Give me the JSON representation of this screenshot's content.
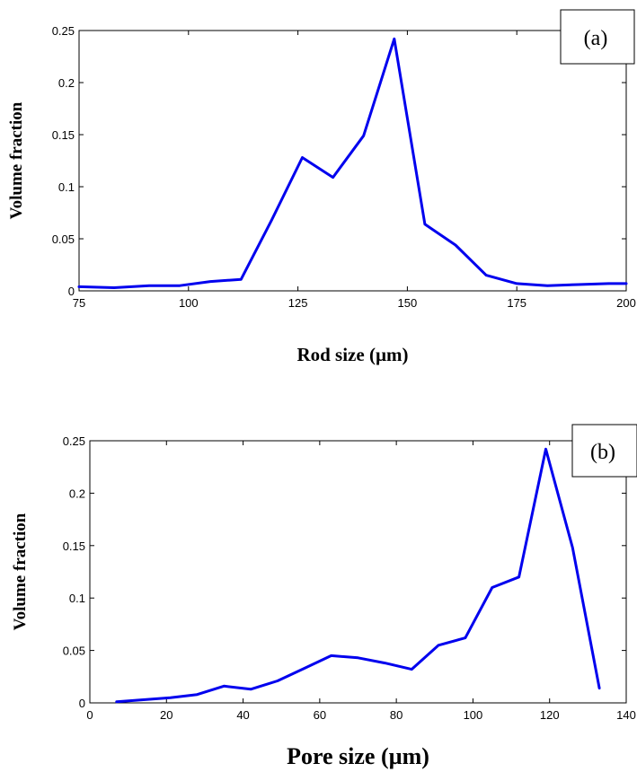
{
  "chart_data": [
    {
      "type": "line",
      "panel_label": "(a)",
      "xlabel": "Rod size (µm)",
      "ylabel": "Volume fraction",
      "xlim": [
        75,
        200
      ],
      "ylim": [
        0,
        0.25
      ],
      "xticks": [
        "75",
        "100",
        "125",
        "150",
        "175",
        "200"
      ],
      "yticks": [
        "0",
        "0.05",
        "0.1",
        "0.15",
        "0.2",
        "0.25"
      ],
      "xtick_values": [
        75,
        100,
        125,
        150,
        175,
        200
      ],
      "ytick_values": [
        0,
        0.05,
        0.1,
        0.15,
        0.2,
        0.25
      ],
      "color": "#0000ee",
      "grid": false,
      "x": [
        75,
        83,
        91,
        98,
        105,
        112,
        119,
        126,
        133,
        140,
        147,
        154,
        161,
        168,
        175,
        182,
        189,
        196,
        200
      ],
      "y": [
        0.004,
        0.003,
        0.005,
        0.005,
        0.009,
        0.011,
        0.068,
        0.128,
        0.109,
        0.149,
        0.242,
        0.064,
        0.044,
        0.015,
        0.007,
        0.005,
        0.006,
        0.007,
        0.007
      ]
    },
    {
      "type": "line",
      "panel_label": "(b)",
      "xlabel": "Pore size (µm)",
      "ylabel": "Volume fraction",
      "xlim": [
        0,
        140
      ],
      "ylim": [
        0,
        0.25
      ],
      "xticks": [
        "0",
        "20",
        "40",
        "60",
        "80",
        "100",
        "120",
        "140"
      ],
      "yticks": [
        "0",
        "0.05",
        "0.1",
        "0.15",
        "0.2",
        "0.25"
      ],
      "xtick_values": [
        0,
        20,
        40,
        60,
        80,
        100,
        120,
        140
      ],
      "ytick_values": [
        0,
        0.05,
        0.1,
        0.15,
        0.2,
        0.25
      ],
      "color": "#0000ee",
      "grid": false,
      "x": [
        7,
        14,
        21,
        28,
        35,
        42,
        49,
        56,
        63,
        70,
        77,
        84,
        91,
        98,
        105,
        112,
        119,
        126,
        133
      ],
      "y": [
        0.001,
        0.003,
        0.005,
        0.008,
        0.016,
        0.013,
        0.021,
        0.033,
        0.045,
        0.043,
        0.038,
        0.032,
        0.055,
        0.062,
        0.11,
        0.12,
        0.242,
        0.148,
        0.014
      ]
    }
  ]
}
